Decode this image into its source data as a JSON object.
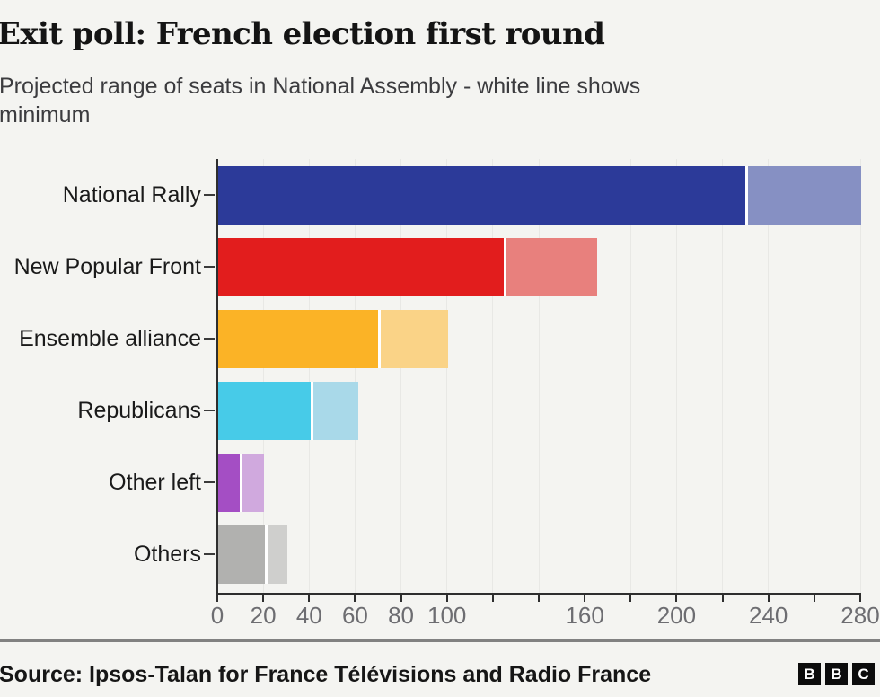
{
  "header": {
    "title": "Exit poll: French election first round",
    "subtitle_line1": "Projected range of seats in National Assembly - white line shows",
    "subtitle_line2": "minimum"
  },
  "chart_data": {
    "type": "bar",
    "orientation": "horizontal",
    "title": "Exit poll: French election first round",
    "subtitle": "Projected range of seats in National Assembly - white line shows minimum",
    "unit": "seats",
    "categories": [
      "National Rally",
      "New Popular Front",
      "Ensemble alliance",
      "Republicans",
      "Other left",
      "Others"
    ],
    "series": [
      {
        "name": "minimum seats (white line)",
        "values": [
          230,
          125,
          70,
          41,
          10,
          21
        ]
      },
      {
        "name": "maximum seats",
        "values": [
          280,
          165,
          100,
          61,
          20,
          30
        ]
      }
    ],
    "bar_colors": [
      {
        "dark": "#2c3a99",
        "light": "#8690c3"
      },
      {
        "dark": "#e21d1d",
        "light": "#e8807d"
      },
      {
        "dark": "#fbb326",
        "light": "#fad387"
      },
      {
        "dark": "#47cbe8",
        "light": "#a9d9e9"
      },
      {
        "dark": "#a44ec4",
        "light": "#d0a9de"
      },
      {
        "dark": "#b1b1af",
        "light": "#cfcfcd"
      }
    ],
    "min_line_color": "#ffffff",
    "xlabel": "",
    "ylabel": "",
    "xlim": [
      0,
      280
    ],
    "x_tick_step": 20,
    "x_labeled_ticks": [
      0,
      20,
      40,
      60,
      80,
      100,
      160,
      200,
      240,
      280
    ],
    "grid": "vertical gridlines every 20 seats",
    "legend": "none"
  },
  "footer": {
    "source": "Source: Ipsos-Talan for France Télévisions and Radio France",
    "logo": [
      "B",
      "B",
      "C"
    ]
  }
}
